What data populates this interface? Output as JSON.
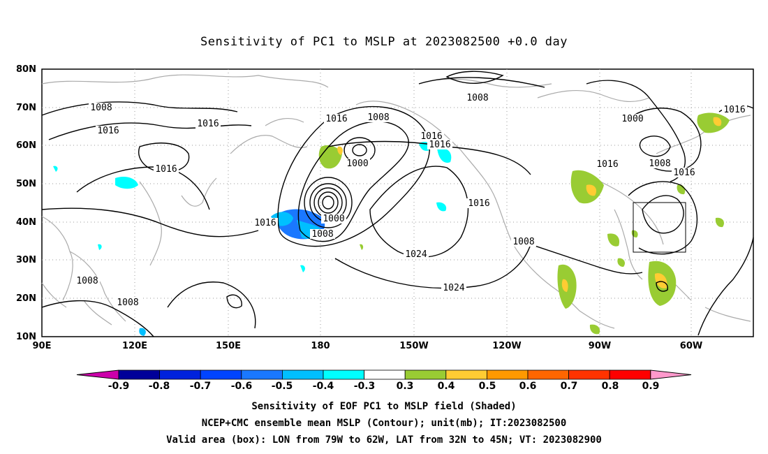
{
  "title": "Sensitivity of PC1 to MSLP at 2023082500 +0.0 day",
  "lat_ticks": [
    "80N",
    "70N",
    "60N",
    "50N",
    "40N",
    "30N",
    "20N",
    "10N"
  ],
  "lon_ticks": [
    "90E",
    "120E",
    "150E",
    "180",
    "150W",
    "120W",
    "90W",
    "60W"
  ],
  "contour_labels": [
    {
      "text": "1008",
      "key": "a"
    },
    {
      "text": "1016",
      "key": "b"
    },
    {
      "text": "1016",
      "key": "c"
    },
    {
      "text": "1016",
      "key": "d"
    },
    {
      "text": "1016",
      "key": "e"
    },
    {
      "text": "1008",
      "key": "f"
    },
    {
      "text": "1000",
      "key": "g"
    },
    {
      "text": "1016",
      "key": "h"
    },
    {
      "text": "1024",
      "key": "i"
    },
    {
      "text": "1008",
      "key": "j"
    },
    {
      "text": "1000",
      "key": "k"
    },
    {
      "text": "1016",
      "key": "l"
    },
    {
      "text": "1008",
      "key": "m"
    },
    {
      "text": "1016",
      "key": "n"
    },
    {
      "text": "1016",
      "key": "o"
    },
    {
      "text": "1016",
      "key": "p"
    },
    {
      "text": "1000",
      "key": "q"
    },
    {
      "text": "1008",
      "key": "r"
    },
    {
      "text": "1024",
      "key": "s"
    },
    {
      "text": "1016",
      "key": "t"
    },
    {
      "text": "1008",
      "key": "u"
    },
    {
      "text": "1008",
      "key": "v"
    },
    {
      "text": "1008",
      "key": "w"
    },
    {
      "text": "1016",
      "key": "x"
    }
  ],
  "colorbar": {
    "labels": [
      "-0.9",
      "-0.8",
      "-0.7",
      "-0.6",
      "-0.5",
      "-0.4",
      "-0.3",
      "0.3",
      "0.4",
      "0.5",
      "0.6",
      "0.7",
      "0.8",
      "0.9"
    ],
    "colors": [
      "#000099",
      "#0022dd",
      "#0044ff",
      "#1a78ff",
      "#00bfff",
      "#00ffff",
      "#ffffff",
      "#99cc33",
      "#ffcc33",
      "#ff9900",
      "#ff6600",
      "#ff3300",
      "#ff0000"
    ],
    "end_low": "#cc00aa",
    "end_high": "#ff99cc"
  },
  "captions": [
    "Sensitivity of EOF PC1 to MSLP field (Shaded)",
    "NCEP+CMC ensemble mean MSLP (Contour); unit(mb); IT:2023082500",
    "Valid area (box): LON from 79W to 62W, LAT from 32N to 45N; VT: 2023082900"
  ]
}
